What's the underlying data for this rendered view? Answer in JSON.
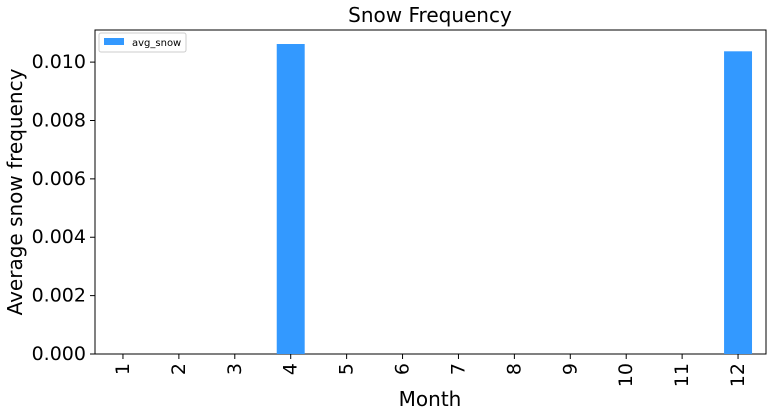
{
  "chart_data": {
    "type": "bar",
    "title": "Snow Frequency",
    "xlabel": "Month",
    "ylabel": "Average snow frequency",
    "categories": [
      "1",
      "2",
      "3",
      "4",
      "5",
      "6",
      "7",
      "8",
      "9",
      "10",
      "11",
      "12"
    ],
    "series": [
      {
        "name": "avg_snow",
        "color": "#3399ff",
        "values": [
          0,
          0,
          0,
          0.01062,
          0,
          0,
          0,
          0,
          0,
          0,
          0,
          0.01037
        ]
      }
    ],
    "ylim": [
      0,
      0.0111
    ],
    "yticks": [
      "0.000",
      "0.002",
      "0.004",
      "0.006",
      "0.008",
      "0.010"
    ],
    "ytick_values": [
      0,
      0.002,
      0.004,
      0.006,
      0.008,
      0.01
    ],
    "grid": false,
    "legend_position": "top-left"
  }
}
